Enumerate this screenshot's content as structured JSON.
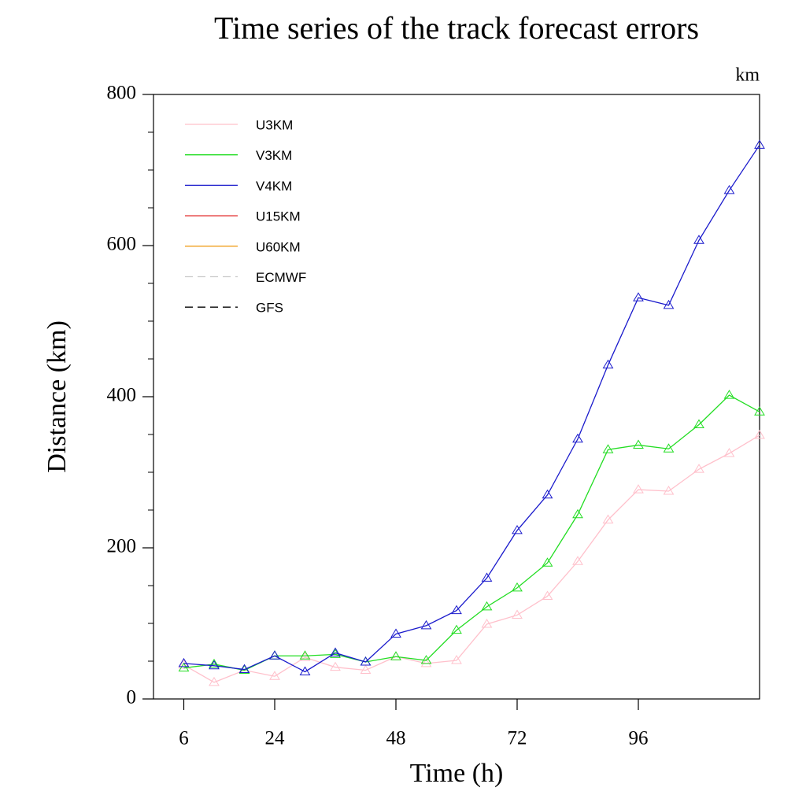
{
  "chart_data": {
    "type": "line",
    "title": "Time series of the track forecast errors",
    "units_label": "km",
    "x_label": "Time (h)",
    "y_label": "Distance (km)",
    "x": [
      6,
      12,
      18,
      24,
      30,
      36,
      42,
      48,
      54,
      60,
      66,
      72,
      78,
      84,
      90,
      96,
      102,
      108,
      114,
      120
    ],
    "xlim": [
      0,
      120
    ],
    "xticks": [
      6,
      24,
      48,
      72,
      96
    ],
    "ylim": [
      0,
      800
    ],
    "yticks": [
      0,
      200,
      400,
      600,
      800
    ],
    "yticks_minor": [
      50,
      100,
      150,
      250,
      300,
      350,
      450,
      500,
      550,
      650,
      700,
      750
    ],
    "marker": "triangle",
    "series": [
      {
        "name": "U3KM",
        "color": "#ffc0cb",
        "dash": false,
        "values": [
          45,
          22,
          38,
          30,
          55,
          42,
          38,
          56,
          47,
          51,
          99,
          111,
          136,
          182,
          237,
          277,
          275,
          304,
          325,
          349
        ]
      },
      {
        "name": "V3KM",
        "color": "#22dd22",
        "dash": false,
        "values": [
          41,
          46,
          38,
          57,
          57,
          59,
          49,
          56,
          51,
          91,
          122,
          147,
          180,
          244,
          330,
          336,
          331,
          363,
          402,
          380
        ]
      },
      {
        "name": "V4KM",
        "color": "#1a1acc",
        "dash": false,
        "values": [
          47,
          44,
          39,
          57,
          36,
          61,
          49,
          86,
          97,
          117,
          160,
          223,
          270,
          344,
          442,
          531,
          521,
          607,
          673,
          733
        ]
      },
      {
        "name": "U15KM",
        "color": "#e02020",
        "dash": false,
        "values": [
          null,
          null,
          null,
          null,
          null,
          null,
          null,
          null,
          null,
          null,
          null,
          null,
          null,
          null,
          null,
          null,
          null,
          null,
          null,
          null
        ]
      },
      {
        "name": "U60KM",
        "color": "#f0a020",
        "dash": false,
        "values": [
          null,
          null,
          null,
          null,
          null,
          null,
          null,
          null,
          null,
          null,
          null,
          null,
          null,
          null,
          null,
          null,
          null,
          null,
          null,
          null
        ]
      },
      {
        "name": "ECMWF",
        "color": "#cccccc",
        "dash": true,
        "values": [
          null,
          null,
          null,
          null,
          null,
          null,
          null,
          null,
          null,
          null,
          null,
          null,
          null,
          null,
          null,
          null,
          null,
          null,
          null,
          null
        ]
      },
      {
        "name": "GFS",
        "color": "#000000",
        "dash": true,
        "values": [
          null,
          null,
          null,
          null,
          null,
          null,
          null,
          null,
          null,
          null,
          null,
          null,
          null,
          null,
          null,
          null,
          null,
          null,
          null,
          null
        ]
      }
    ]
  }
}
